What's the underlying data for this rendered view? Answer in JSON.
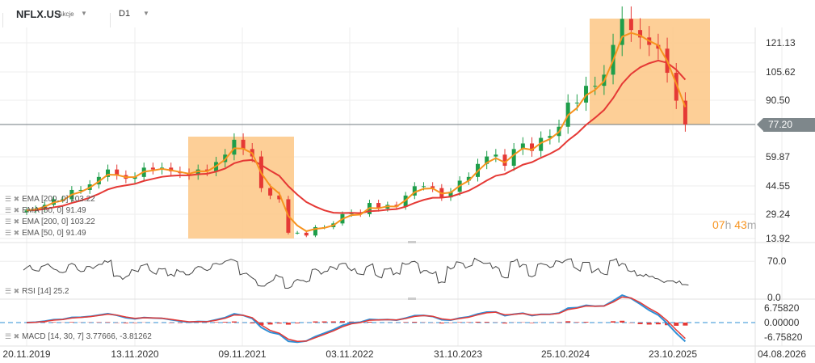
{
  "header": {
    "symbol": "NFLX.US",
    "instrument_type": "Akcje",
    "timeframe": "D1"
  },
  "price_axis": {
    "ticks": [
      "121.13",
      "105.62",
      "90.50",
      "77.20",
      "59.87",
      "44.55",
      "29.24",
      "13.92"
    ],
    "current_price": "77.20"
  },
  "rsi_axis": {
    "ticks": [
      "70.0",
      "0.0"
    ]
  },
  "macd_axis": {
    "ticks": [
      "6.75820",
      "0.00000",
      "-6.75820"
    ]
  },
  "legend": [
    {
      "text": "EMA  [200,  0] 103.22",
      "color": "#e53935"
    },
    {
      "text": "EMA  [50,  0] 91.49",
      "color": "#f7931e"
    },
    {
      "text": "EMA  [200,  0] 103.22",
      "color": "#e53935"
    },
    {
      "text": "EMA  [50,  0] 91.49",
      "color": "#f7931e"
    }
  ],
  "rsi_legend": "RSI  [14]  25.2",
  "macd_legend": "MACD  [14, 30, 7]   3.77666,  -3.81262",
  "timer": {
    "hours": "07",
    "h": "h",
    "minutes": "43",
    "m": "m"
  },
  "colors": {
    "up": "#1e9e4a",
    "down": "#e53935",
    "ema50": "#f7931e",
    "ema200": "#e53935",
    "highlight": "#fdc785",
    "macd": "#2e8fd6",
    "signal": "#e53935"
  },
  "chart_data": {
    "type": "candlestick",
    "x_tick_labels": [
      "20.11.2019",
      "13.11.2020",
      "09.11.2021",
      "03.11.2022",
      "31.10.2023",
      "25.10.2024",
      "23.10.2025",
      "04.08.2026"
    ],
    "dates": [
      "2019-11",
      "2019-12",
      "2020-01",
      "2020-02",
      "2020-03",
      "2020-04",
      "2020-05",
      "2020-06",
      "2020-07",
      "2020-08",
      "2020-09",
      "2020-10",
      "2020-11",
      "2020-12",
      "2021-01",
      "2021-02",
      "2021-03",
      "2021-04",
      "2021-05",
      "2021-06",
      "2021-07",
      "2021-08",
      "2021-09",
      "2021-10",
      "2021-11",
      "2021-12",
      "2022-01",
      "2022-02",
      "2022-03",
      "2022-04",
      "2022-05",
      "2022-06",
      "2022-07",
      "2022-08",
      "2022-09",
      "2022-10",
      "2022-11",
      "2022-12",
      "2023-01",
      "2023-02",
      "2023-03",
      "2023-04",
      "2023-05",
      "2023-06",
      "2023-07",
      "2023-08",
      "2023-09",
      "2023-10",
      "2023-11",
      "2023-12",
      "2024-01",
      "2024-02",
      "2024-03",
      "2024-04",
      "2024-05",
      "2024-06",
      "2024-07",
      "2024-08",
      "2024-09",
      "2024-10",
      "2024-11",
      "2024-12",
      "2025-01",
      "2025-02",
      "2025-03",
      "2025-04",
      "2025-05",
      "2025-06",
      "2025-07",
      "2025-08",
      "2025-09",
      "2025-10",
      "2025-11",
      "2025-12"
    ],
    "close": [
      31,
      32,
      34,
      37,
      37,
      42,
      42,
      45,
      49,
      53,
      50,
      48,
      49,
      54,
      53,
      54,
      52,
      51,
      50,
      53,
      52,
      57,
      61,
      69,
      64,
      60,
      43,
      39,
      37,
      19,
      19,
      17.5,
      22,
      22,
      24,
      29,
      30,
      29,
      35,
      32,
      34,
      33,
      39,
      44,
      44,
      43,
      38,
      41,
      47,
      49,
      56,
      60,
      61,
      55,
      64,
      67,
      63,
      70,
      71,
      76,
      89,
      89,
      98,
      98,
      104,
      120,
      134,
      128,
      124,
      120,
      118,
      105,
      90,
      77.2
    ],
    "rsi": [
      58,
      52,
      62,
      55,
      48,
      66,
      50,
      60,
      64,
      68,
      42,
      40,
      52,
      63,
      48,
      55,
      45,
      50,
      44,
      60,
      52,
      66,
      70,
      72,
      46,
      38,
      22,
      30,
      40,
      18,
      35,
      30,
      55,
      50,
      58,
      66,
      52,
      45,
      62,
      40,
      55,
      48,
      64,
      70,
      52,
      46,
      30,
      55,
      68,
      60,
      72,
      66,
      60,
      38,
      70,
      64,
      40,
      66,
      58,
      70,
      74,
      55,
      68,
      52,
      45,
      72,
      66,
      50,
      44,
      40,
      36,
      32,
      28,
      25
    ],
    "price_ylim": [
      13.92,
      121.13
    ],
    "highlight_ranges": [
      [
        "2021-09",
        "2022-06"
      ],
      [
        "2025-01",
        "2025-12"
      ]
    ],
    "grid": true
  }
}
